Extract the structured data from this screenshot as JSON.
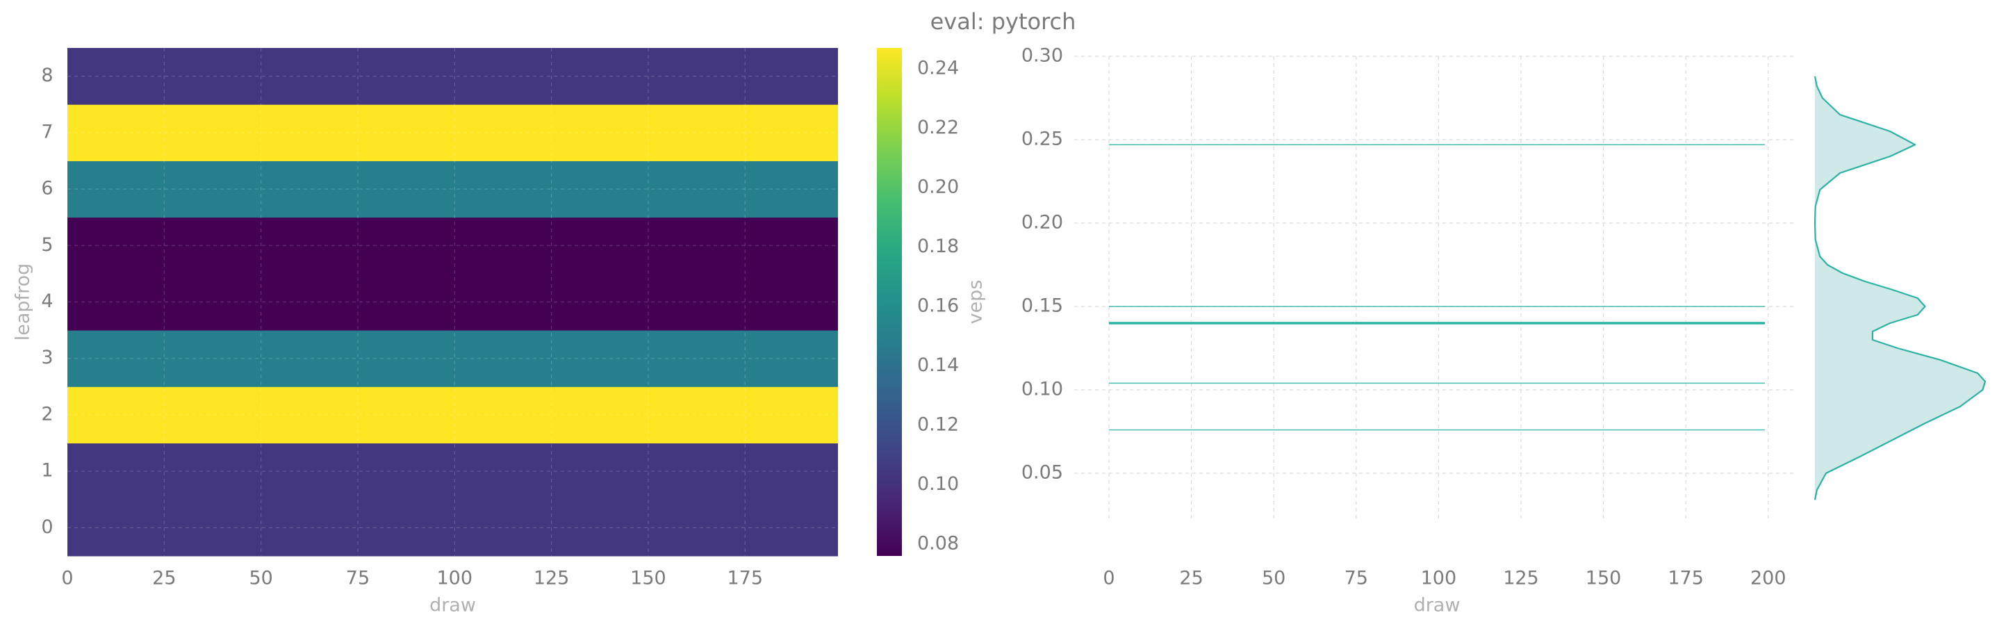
{
  "title": "eval: pytorch",
  "colors": {
    "tick_text": "#7a7a7a",
    "axis_label": "#b0b0b0",
    "grid": "#d9d9d9",
    "trace_line": "#2ab3a3",
    "kde_fill": "#cfe9e9"
  },
  "chart_data": [
    {
      "type": "heatmap",
      "xlabel": "draw",
      "ylabel": "leapfrog",
      "colorbar_label": "veps",
      "colormap": "viridis",
      "xlim": [
        0,
        199
      ],
      "x_ticks": [
        0,
        25,
        50,
        75,
        100,
        125,
        150,
        175
      ],
      "y_ticks": [
        0,
        1,
        2,
        3,
        4,
        5,
        6,
        7,
        8
      ],
      "rows": [
        {
          "leapfrog": 0,
          "value": 0.104
        },
        {
          "leapfrog": 1,
          "value": 0.104
        },
        {
          "leapfrog": 2,
          "value": 0.247
        },
        {
          "leapfrog": 3,
          "value": 0.15
        },
        {
          "leapfrog": 4,
          "value": 0.076
        },
        {
          "leapfrog": 5,
          "value": 0.076
        },
        {
          "leapfrog": 6,
          "value": 0.15
        },
        {
          "leapfrog": 7,
          "value": 0.247
        },
        {
          "leapfrog": 8,
          "value": 0.104
        }
      ],
      "colorbar_range": [
        0.076,
        0.247
      ],
      "colorbar_ticks": [
        0.08,
        0.1,
        0.12,
        0.14,
        0.16,
        0.18,
        0.2,
        0.22,
        0.24
      ],
      "colorbar_tick_labels": [
        "0.08",
        "0.10",
        "0.12",
        "0.14",
        "0.16",
        "0.18",
        "0.20",
        "0.22",
        "0.24"
      ],
      "grid": true
    },
    {
      "type": "line",
      "xlabel": "draw",
      "ylabel": "",
      "xlim": [
        0,
        199
      ],
      "ylim": [
        0.025,
        0.3
      ],
      "x_ticks": [
        0,
        25,
        50,
        75,
        100,
        125,
        150,
        175,
        200
      ],
      "y_ticks": [
        0.05,
        0.1,
        0.15,
        0.2,
        0.25,
        0.3
      ],
      "y_tick_labels": [
        "0.05",
        "0.10",
        "0.15",
        "0.20",
        "0.25",
        "0.30"
      ],
      "series": [
        {
          "values": [
            0.247
          ],
          "x_range": [
            0,
            199
          ],
          "weight": "thin"
        },
        {
          "values": [
            0.15
          ],
          "x_range": [
            0,
            199
          ],
          "weight": "thin"
        },
        {
          "values": [
            0.14
          ],
          "x_range": [
            0,
            199
          ],
          "weight": "thick"
        },
        {
          "values": [
            0.104
          ],
          "x_range": [
            0,
            199
          ],
          "weight": "thin"
        },
        {
          "values": [
            0.076
          ],
          "x_range": [
            0,
            199
          ],
          "weight": "thin"
        }
      ],
      "grid": true
    },
    {
      "type": "area",
      "orientation": "horizontal",
      "description_of_axis": "density of veps sharing the trace y axis",
      "y": [
        0.034,
        0.04,
        0.05,
        0.06,
        0.07,
        0.08,
        0.09,
        0.1,
        0.105,
        0.11,
        0.118,
        0.125,
        0.13,
        0.135,
        0.14,
        0.145,
        0.15,
        0.155,
        0.16,
        0.165,
        0.17,
        0.175,
        0.18,
        0.19,
        0.2,
        0.21,
        0.22,
        0.23,
        0.24,
        0.247,
        0.255,
        0.265,
        0.275,
        0.282,
        0.288
      ],
      "density": [
        0.0,
        0.4,
        2.2,
        9.0,
        15.5,
        22.0,
        29.0,
        33.5,
        34.0,
        32.5,
        25.0,
        16.5,
        11.5,
        11.5,
        15.0,
        20.5,
        22.0,
        20.5,
        15.5,
        10.0,
        5.5,
        2.5,
        1.0,
        0.1,
        0.0,
        0.1,
        1.0,
        5.0,
        15.0,
        20.0,
        15.0,
        5.0,
        1.5,
        0.4,
        0.0
      ],
      "density_max": 34.0
    }
  ]
}
